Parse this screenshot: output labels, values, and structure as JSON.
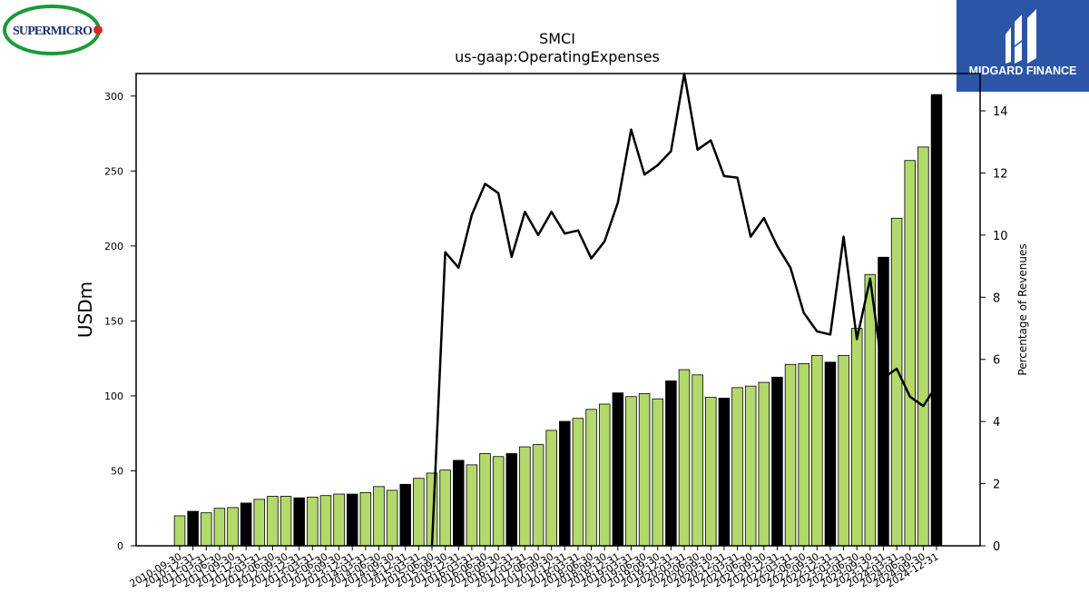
{
  "branding": {
    "company_logo_text": "SUPERMICRO",
    "publisher_logo_text": "MIDGARD FINANCE",
    "publisher_bg": "#2c55a8",
    "company_ring_color": "#1a9a3a",
    "company_text_color": "#1b2f6b",
    "company_dot_color": "#d9262c"
  },
  "chart_data": {
    "type": "bar",
    "title": "SMCI",
    "subtitle": "us-gaap:OperatingExpenses",
    "ylabel": "USDm",
    "y2label": "Percentage of Revenues",
    "ylim": [
      0,
      315
    ],
    "y2lim": [
      0,
      15.2
    ],
    "yticks": [
      0,
      50,
      100,
      150,
      200,
      250,
      300
    ],
    "y2ticks": [
      0,
      2,
      4,
      6,
      8,
      10,
      12,
      14
    ],
    "colors": {
      "quarter_bar": "#b3d96b",
      "fiscal_year_bar": "#000000",
      "line": "#000000"
    },
    "categories": [
      "2010-09-30",
      "2010-12-31",
      "2011-03-31",
      "2011-06-30",
      "2011-09-30",
      "2011-12-31",
      "2012-03-31",
      "2012-06-30",
      "2012-09-30",
      "2012-12-31",
      "2013-03-31",
      "2013-06-30",
      "2013-09-30",
      "2013-12-31",
      "2014-03-31",
      "2014-06-30",
      "2014-09-30",
      "2014-12-31",
      "2015-03-31",
      "2015-06-30",
      "2015-09-30",
      "2015-12-31",
      "2016-03-31",
      "2016-06-30",
      "2016-09-30",
      "2016-12-31",
      "2017-03-31",
      "2017-06-30",
      "2017-09-30",
      "2017-12-31",
      "2018-03-31",
      "2018-06-30",
      "2018-09-30",
      "2018-12-31",
      "2019-03-31",
      "2019-06-30",
      "2019-09-30",
      "2019-12-31",
      "2020-03-31",
      "2020-06-30",
      "2020-09-30",
      "2020-12-31",
      "2021-03-31",
      "2021-06-30",
      "2021-09-30",
      "2021-12-31",
      "2022-03-31",
      "2022-06-30",
      "2022-09-30",
      "2022-12-31",
      "2023-03-31",
      "2023-06-30",
      "2023-09-30",
      "2023-12-31",
      "2024-03-31",
      "2024-06-30",
      "2024-09-30",
      "2024-12-31"
    ],
    "series": [
      {
        "kind": "bar",
        "values": [
          20,
          23,
          22,
          25,
          25.5,
          28.5,
          31,
          33,
          33,
          32,
          32.5,
          33.5,
          34.5,
          34.5,
          35.5,
          39.5,
          37,
          41,
          45,
          48.5,
          50.5,
          57,
          54,
          61.5,
          59.5,
          61.5,
          66,
          67.5,
          77,
          83,
          85,
          91,
          94.5,
          102,
          99.5,
          101.5,
          98,
          110,
          117.5,
          114,
          99,
          98.5,
          105.5,
          106.5,
          109,
          112.5,
          121,
          121.5,
          127,
          122.5,
          127,
          145,
          181,
          192.5,
          218.5,
          257,
          266,
          301
        ],
        "fiscal_year_end": [
          false,
          true,
          false,
          false,
          false,
          true,
          false,
          false,
          false,
          true,
          false,
          false,
          false,
          true,
          false,
          false,
          false,
          true,
          false,
          false,
          false,
          true,
          false,
          false,
          false,
          true,
          false,
          false,
          false,
          true,
          false,
          false,
          false,
          true,
          false,
          false,
          false,
          true,
          false,
          false,
          false,
          true,
          false,
          false,
          false,
          true,
          false,
          false,
          false,
          true,
          false,
          false,
          false,
          true,
          false,
          false,
          false,
          true
        ]
      },
      {
        "kind": "line",
        "axis": "y2",
        "values": [
          null,
          null,
          null,
          null,
          null,
          null,
          null,
          null,
          null,
          null,
          null,
          null,
          null,
          null,
          null,
          null,
          null,
          null,
          null,
          0,
          9.45,
          8.95,
          10.65,
          11.65,
          11.35,
          9.3,
          10.75,
          10.0,
          10.75,
          10.05,
          10.15,
          9.25,
          9.8,
          11.05,
          13.4,
          11.95,
          12.25,
          12.7,
          15.2,
          12.75,
          13.05,
          11.9,
          11.85,
          9.95,
          10.55,
          9.65,
          8.95,
          7.5,
          6.9,
          6.8,
          9.95,
          6.65,
          8.6,
          5.4,
          5.7,
          4.8,
          4.5,
          5.15
        ]
      }
    ]
  }
}
